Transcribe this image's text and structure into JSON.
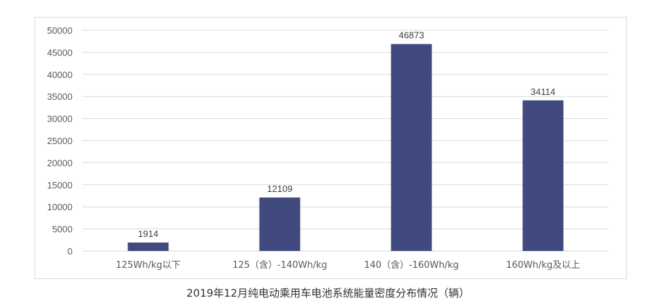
{
  "chart_data": {
    "type": "bar",
    "title": "2019年12月纯电动乘用车电池系统能量密度分布情况（辆）",
    "categories": [
      "125Wh/kg以下",
      "125（含）-140Wh/kg",
      "140（含）-160Wh/kg",
      "160Wh/kg及以上"
    ],
    "values": [
      1914,
      12109,
      46873,
      34114
    ],
    "data_labels": [
      "1914",
      "12109",
      "46873",
      "34114"
    ],
    "xlabel": "",
    "ylabel": "",
    "ylim": [
      0,
      50000
    ],
    "yticks": [
      "0",
      "5000",
      "10000",
      "15000",
      "20000",
      "25000",
      "30000",
      "35000",
      "40000",
      "45000",
      "50000"
    ],
    "grid": true,
    "legend": "none",
    "bar_color": "#404a7e"
  }
}
